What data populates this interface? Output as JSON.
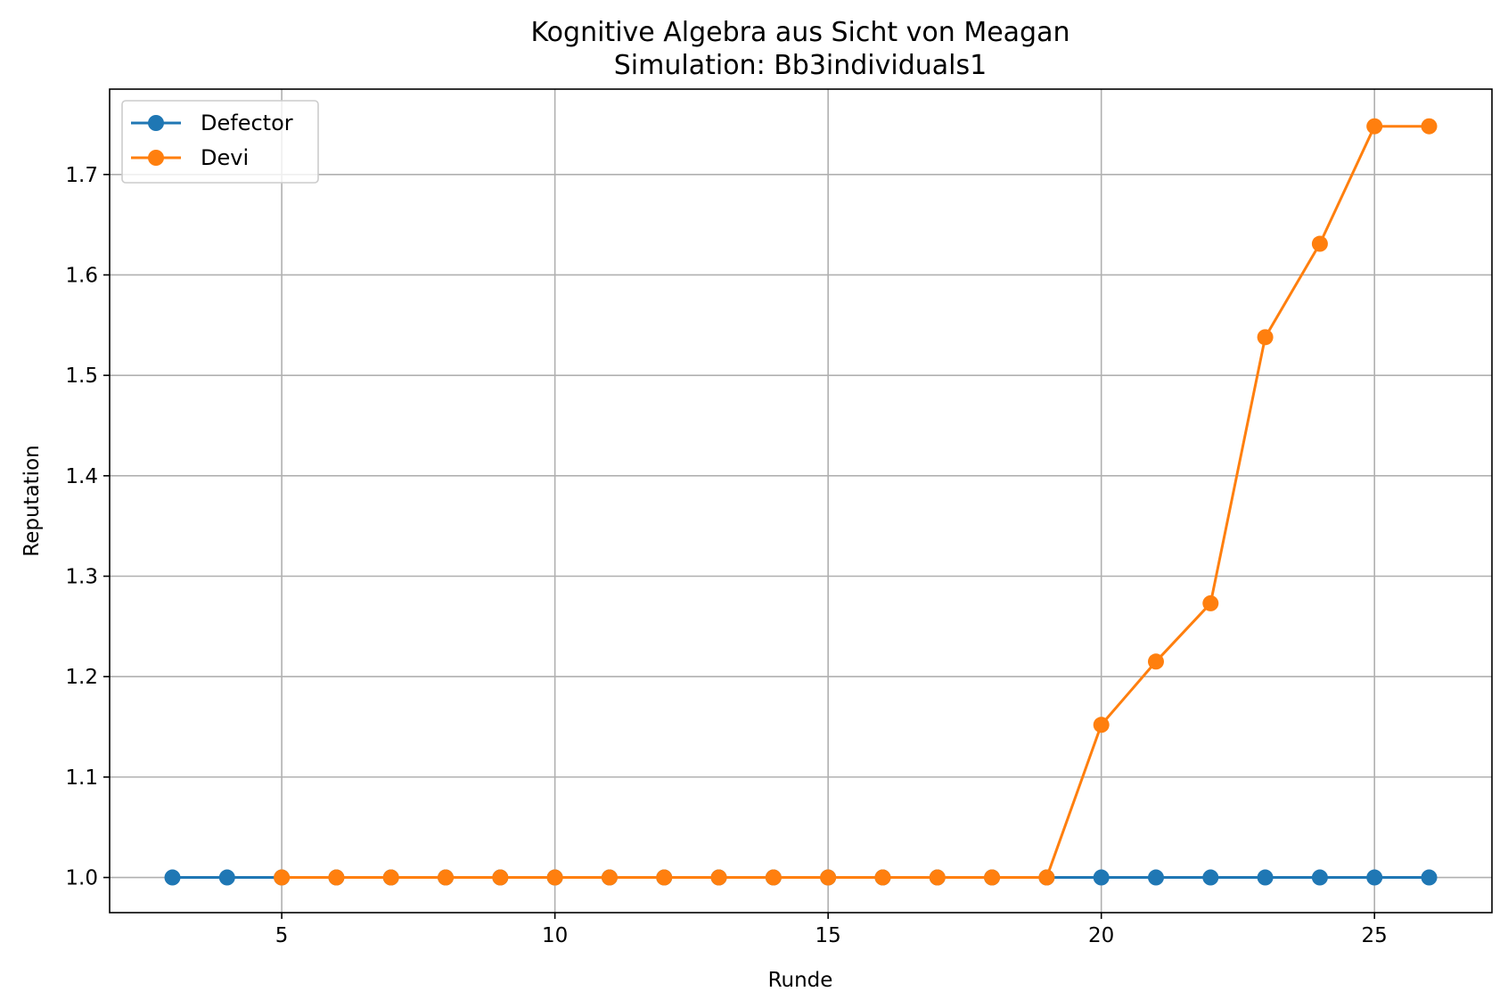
{
  "chart_data": {
    "type": "line",
    "title": "Kognitive Algebra aus Sicht von Meagan",
    "subtitle": "Simulation: Bb3individuals1",
    "xlabel": "Runde",
    "ylabel": "Reputation",
    "xlim": [
      1.85,
      27.15
    ],
    "ylim": [
      0.965,
      1.785
    ],
    "xticks": [
      5,
      10,
      15,
      20,
      25
    ],
    "yticks": [
      1.0,
      1.1,
      1.2,
      1.3,
      1.4,
      1.5,
      1.6,
      1.7
    ],
    "grid": true,
    "legend_position": "top-left",
    "series": [
      {
        "name": "Defector",
        "color": "#1f77b4",
        "x": [
          3,
          4,
          5,
          6,
          7,
          8,
          9,
          10,
          11,
          12,
          13,
          14,
          15,
          16,
          17,
          18,
          19,
          20,
          21,
          22,
          23,
          24,
          25,
          26
        ],
        "y": [
          1.0,
          1.0,
          1.0,
          1.0,
          1.0,
          1.0,
          1.0,
          1.0,
          1.0,
          1.0,
          1.0,
          1.0,
          1.0,
          1.0,
          1.0,
          1.0,
          1.0,
          1.0,
          1.0,
          1.0,
          1.0,
          1.0,
          1.0,
          1.0
        ]
      },
      {
        "name": "Devi",
        "color": "#ff7f0e",
        "x": [
          5,
          6,
          7,
          8,
          9,
          10,
          11,
          12,
          13,
          14,
          15,
          16,
          17,
          18,
          19,
          20,
          21,
          22,
          23,
          24,
          25,
          26
        ],
        "y": [
          1.0,
          1.0,
          1.0,
          1.0,
          1.0,
          1.0,
          1.0,
          1.0,
          1.0,
          1.0,
          1.0,
          1.0,
          1.0,
          1.0,
          1.0,
          1.152,
          1.215,
          1.273,
          1.538,
          1.631,
          1.748,
          1.748
        ]
      }
    ]
  }
}
